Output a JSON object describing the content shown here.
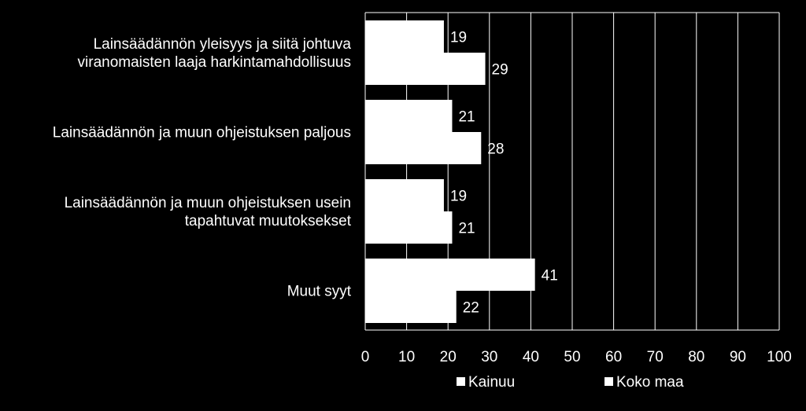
{
  "chart_data": {
    "type": "bar",
    "orientation": "horizontal",
    "categories": [
      [
        "Lainsäädännön yleisyys ja siitä johtuva",
        "viranomaisten laaja harkintamahdollisuus"
      ],
      [
        "Lainsäädännön ja muun ohjeistuksen paljous"
      ],
      [
        "Lainsäädännön ja muun ohjeistuksen usein",
        "tapahtuvat muutoksekset"
      ],
      [
        "Muut syyt"
      ]
    ],
    "series": [
      {
        "name": "Kainuu",
        "values": [
          19,
          21,
          19,
          41
        ]
      },
      {
        "name": "Koko maa",
        "values": [
          29,
          28,
          21,
          22
        ]
      }
    ],
    "xlim": [
      0,
      100
    ],
    "xticks": [
      0,
      10,
      20,
      30,
      40,
      50,
      60,
      70,
      80,
      90,
      100
    ],
    "grid": true,
    "legend_position": "bottom",
    "colors": {
      "background": "#000000",
      "bar": "#ffffff",
      "grid": "#ffffff",
      "text": "#ffffff"
    }
  }
}
